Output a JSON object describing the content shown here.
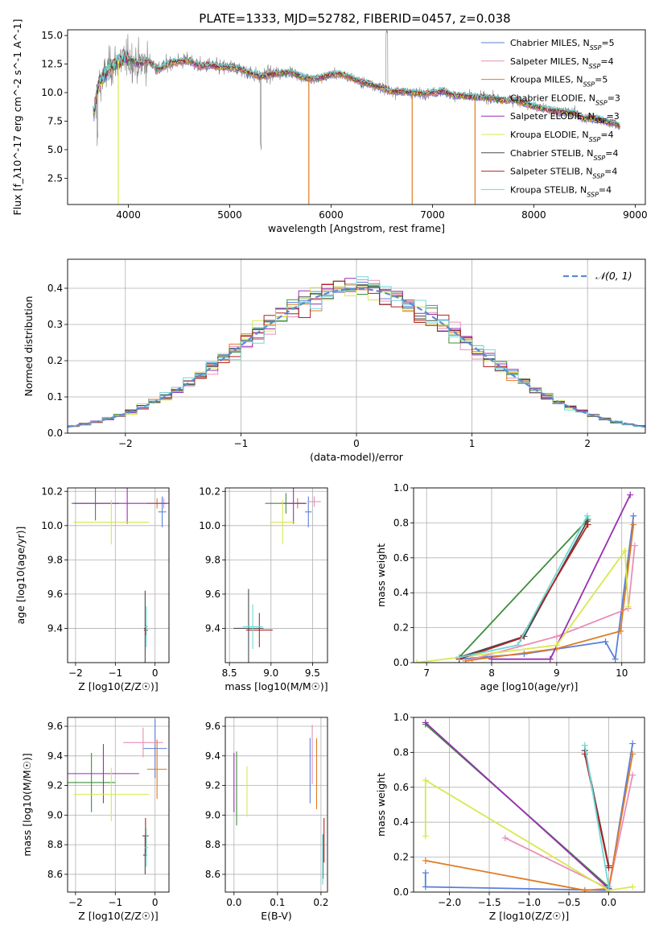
{
  "figure": {
    "title": "PLATE=1333, MJD=52782, FIBERID=0457, z=0.038"
  },
  "chart_data": [
    {
      "id": "spectrum",
      "type": "line",
      "title": "PLATE=1333, MJD=52782, FIBERID=0457, z=0.038",
      "xlabel": "wavelength [Angstrom, rest frame]",
      "ylabel": "Flux [f_λ10^-17 erg cm^-2 s^-1 A^-1]",
      "xlim": [
        3400,
        9100
      ],
      "ylim": [
        0.2,
        15.5
      ],
      "xticks": [
        "4000",
        "5000",
        "6000",
        "7000",
        "8000",
        "9000"
      ],
      "yticks": [
        "2.5",
        "5.0",
        "7.5",
        "10.0",
        "12.5",
        "15.0"
      ],
      "grid": false,
      "legend_position": "top-right",
      "data_color": "#808080",
      "continuum": {
        "x": [
          3650,
          3700,
          3800,
          3900,
          4000,
          4100,
          4200,
          4300,
          4400,
          4500,
          4600,
          4700,
          4800,
          4900,
          5000,
          5100,
          5200,
          5300,
          5400,
          5500,
          5600,
          5700,
          5800,
          5900,
          6000,
          6100,
          6200,
          6300,
          6400,
          6500,
          6600,
          6700,
          6800,
          6900,
          7000,
          7100,
          7200,
          7300,
          7400,
          7500,
          7600,
          7700,
          7800,
          7900,
          8000,
          8100,
          8200,
          8300,
          8400,
          8500,
          8600,
          8700,
          8800,
          8850
        ],
        "y": [
          7.7,
          10.5,
          12.0,
          12.8,
          13.0,
          12.5,
          12.8,
          12.0,
          12.6,
          12.7,
          12.8,
          12.3,
          12.4,
          12.2,
          12.2,
          12.1,
          11.7,
          11.4,
          11.6,
          11.7,
          11.8,
          11.4,
          11.2,
          11.3,
          11.6,
          11.6,
          11.3,
          10.9,
          10.7,
          10.4,
          10.1,
          10.1,
          10.0,
          9.9,
          10.0,
          10.1,
          9.8,
          9.7,
          9.6,
          9.6,
          9.5,
          9.3,
          9.4,
          9.1,
          8.8,
          8.6,
          8.4,
          8.3,
          8.2,
          7.7,
          7.8,
          7.5,
          7.3,
          7.0
        ]
      },
      "series": [
        {
          "name": "Chabrier MILES, N_SSP=5",
          "color": "#5b7fd9"
        },
        {
          "name": "Salpeter MILES, N_SSP=4",
          "color": "#e88fb8"
        },
        {
          "name": "Kroupa MILES, N_SSP=5",
          "color": "#e07b25"
        },
        {
          "name": "Chabrier ELODIE, N_SSP=3",
          "color": "#3e8e3e"
        },
        {
          "name": "Salpeter ELODIE, N_SSP=3",
          "color": "#9a2fb3"
        },
        {
          "name": "Kroupa ELODIE, N_SSP=4",
          "color": "#d9e84f"
        },
        {
          "name": "Chabrier STELIB, N_SSP=4",
          "color": "#4a4a4a"
        },
        {
          "name": "Salpeter STELIB, N_SSP=4",
          "color": "#b22222"
        },
        {
          "name": "Kroupa STELIB, N_SSP=4",
          "color": "#6fd8d8"
        }
      ]
    },
    {
      "id": "residuals",
      "type": "step",
      "xlabel": "(data-model)/error",
      "ylabel": "Normed distribution",
      "xlim": [
        -2.5,
        2.5
      ],
      "ylim": [
        0,
        0.48
      ],
      "xticks": [
        "−2",
        "−1",
        "0",
        "1",
        "2"
      ],
      "yticks": [
        "0.0",
        "0.1",
        "0.2",
        "0.3",
        "0.4"
      ],
      "grid": true,
      "legend_position": "top-right",
      "reference": {
        "name": "𝒩(0, 1)",
        "color": "#5b8ad6"
      },
      "bin_edges": [
        -2.5,
        2.5
      ],
      "bin_count": 50
    },
    {
      "id": "age-vs-Z",
      "type": "errorbar",
      "xlabel": "Z [log10(Z/Z☉)]",
      "ylabel": "age  [log10(age/yr)]",
      "xlim": [
        -2.2,
        0.35
      ],
      "ylim": [
        9.2,
        10.22
      ],
      "xticks": [
        "−2",
        "−1",
        "0"
      ],
      "yticks": [
        "9.4",
        "9.6",
        "9.8",
        "10.0",
        "10.2"
      ],
      "grid": true,
      "points": [
        {
          "series": "Chabrier MILES",
          "x": 0.18,
          "y": 10.08,
          "xerr": 0.1,
          "yerr": 0.09
        },
        {
          "series": "Salpeter MILES",
          "x": 0.22,
          "y": 10.13,
          "xerr": 0.1,
          "yerr": 0.03
        },
        {
          "series": "Kroupa MILES",
          "x": 0.05,
          "y": 10.13,
          "xerr": 0.25,
          "yerr": 0.03
        },
        {
          "series": "Chabrier ELODIE",
          "x": -1.5,
          "y": 10.13,
          "xerr": 0.6,
          "yerr": 0.1
        },
        {
          "series": "Salpeter ELODIE",
          "x": -0.7,
          "y": 10.13,
          "xerr": 1.35,
          "yerr": 0.12
        },
        {
          "series": "Kroupa ELODIE",
          "x": -1.1,
          "y": 10.02,
          "xerr": 0.95,
          "yerr": 0.13
        },
        {
          "series": "Chabrier STELIB",
          "x": -0.25,
          "y": 9.4,
          "xerr": 0.03,
          "yerr": 0.22
        },
        {
          "series": "Salpeter STELIB",
          "x": -0.23,
          "y": 9.39,
          "xerr": 0.05,
          "yerr": 0.03
        },
        {
          "series": "Kroupa STELIB",
          "x": -0.22,
          "y": 9.41,
          "xerr": 0.04,
          "yerr": 0.12
        }
      ]
    },
    {
      "id": "age-vs-mass",
      "type": "errorbar",
      "xlabel": "mass [log10(M/M☉)]",
      "ylabel": "",
      "xlim": [
        8.45,
        9.68
      ],
      "ylim": [
        9.2,
        10.22
      ],
      "xticks": [
        "8.5",
        "9.0",
        "9.5"
      ],
      "yticks": [
        "9.4",
        "9.6",
        "9.8",
        "10.0",
        "10.2"
      ],
      "grid": true,
      "points": [
        {
          "series": "Chabrier MILES",
          "x": 9.45,
          "y": 10.08,
          "xerr": 0.04,
          "yerr": 0.09
        },
        {
          "series": "Salpeter MILES",
          "x": 9.52,
          "y": 10.14,
          "xerr": 0.08,
          "yerr": 0.03
        },
        {
          "series": "Kroupa MILES",
          "x": 9.32,
          "y": 10.13,
          "xerr": 0.1,
          "yerr": 0.03
        },
        {
          "series": "Chabrier ELODIE",
          "x": 9.18,
          "y": 10.13,
          "xerr": 0.25,
          "yerr": 0.06
        },
        {
          "series": "Salpeter ELODIE",
          "x": 9.27,
          "y": 10.13,
          "xerr": 0.14,
          "yerr": 0.12
        },
        {
          "series": "Kroupa ELODIE",
          "x": 9.14,
          "y": 10.02,
          "xerr": 0.15,
          "yerr": 0.13
        },
        {
          "series": "Chabrier STELIB",
          "x": 8.73,
          "y": 9.4,
          "xerr": 0.18,
          "yerr": 0.23
        },
        {
          "series": "Salpeter STELIB",
          "x": 8.86,
          "y": 9.39,
          "xerr": 0.16,
          "yerr": 0.1
        },
        {
          "series": "Kroupa STELIB",
          "x": 8.78,
          "y": 9.41,
          "xerr": 0.12,
          "yerr": 0.13
        }
      ]
    },
    {
      "id": "mass-weight-vs-age",
      "type": "line",
      "xlabel": "age  [log10(age/yr)]",
      "ylabel": "mass weight",
      "xlim": [
        6.8,
        10.35
      ],
      "ylim": [
        0,
        1.0
      ],
      "xticks": [
        "7",
        "8",
        "9",
        "10"
      ],
      "yticks": [
        "0.0",
        "0.2",
        "0.4",
        "0.6",
        "0.8",
        "1.0"
      ],
      "grid": true,
      "series": [
        {
          "name": "Chabrier MILES",
          "x": [
            7.5,
            8.5,
            9.75,
            9.9,
            10.18
          ],
          "y": [
            0.02,
            0.05,
            0.12,
            0.02,
            0.84
          ]
        },
        {
          "name": "Salpeter MILES",
          "x": [
            7.7,
            9.0,
            10.1,
            10.2
          ],
          "y": [
            0.02,
            0.15,
            0.31,
            0.67
          ]
        },
        {
          "name": "Kroupa MILES",
          "x": [
            7.6,
            9.0,
            9.98,
            10.18
          ],
          "y": [
            0.01,
            0.08,
            0.18,
            0.79
          ]
        },
        {
          "name": "Chabrier ELODIE",
          "x": [
            7.5,
            9.48
          ],
          "y": [
            0.03,
            0.82
          ]
        },
        {
          "name": "Salpeter ELODIE",
          "x": [
            8.0,
            8.9,
            10.13
          ],
          "y": [
            0.02,
            0.02,
            0.96
          ]
        },
        {
          "name": "Kroupa ELODIE",
          "x": [
            6.85,
            9.0,
            10.05,
            10.1
          ],
          "y": [
            0.0,
            0.1,
            0.64,
            0.32
          ]
        },
        {
          "name": "Chabrier STELIB",
          "x": [
            7.5,
            8.5,
            9.47
          ],
          "y": [
            0.03,
            0.15,
            0.81
          ]
        },
        {
          "name": "Salpeter STELIB",
          "x": [
            7.5,
            8.45,
            9.48
          ],
          "y": [
            0.02,
            0.14,
            0.79
          ]
        },
        {
          "name": "Kroupa STELIB",
          "x": [
            7.5,
            8.4,
            9.47
          ],
          "y": [
            0.03,
            0.1,
            0.84
          ]
        }
      ]
    },
    {
      "id": "mass-vs-Z",
      "type": "errorbar",
      "xlabel": "Z [log10(Z/Z☉)]",
      "ylabel": "mass [log10(M/M☉)]",
      "xlim": [
        -2.2,
        0.35
      ],
      "ylim": [
        8.48,
        9.66
      ],
      "xticks": [
        "−2",
        "−1",
        "0"
      ],
      "yticks": [
        "8.6",
        "8.8",
        "9.0",
        "9.2",
        "9.4",
        "9.6"
      ],
      "grid": true,
      "points": [
        {
          "series": "Chabrier MILES",
          "x": 0.0,
          "y": 9.45,
          "xerr": 0.3,
          "yerr": 0.2
        },
        {
          "series": "Salpeter MILES",
          "x": -0.3,
          "y": 9.49,
          "xerr": 0.5,
          "yerr": 0.1
        },
        {
          "series": "Kroupa MILES",
          "x": 0.05,
          "y": 9.31,
          "xerr": 0.25,
          "yerr": 0.2
        },
        {
          "series": "Chabrier ELODIE",
          "x": -1.6,
          "y": 9.22,
          "xerr": 0.6,
          "yerr": 0.2
        },
        {
          "series": "Salpeter ELODIE",
          "x": -1.3,
          "y": 9.28,
          "xerr": 0.9,
          "yerr": 0.2
        },
        {
          "series": "Kroupa ELODIE",
          "x": -1.1,
          "y": 9.14,
          "xerr": 0.95,
          "yerr": 0.18
        },
        {
          "series": "Chabrier STELIB",
          "x": -0.25,
          "y": 8.73,
          "xerr": 0.05,
          "yerr": 0.13
        },
        {
          "series": "Salpeter STELIB",
          "x": -0.24,
          "y": 8.86,
          "xerr": 0.08,
          "yerr": 0.12
        },
        {
          "series": "Kroupa STELIB",
          "x": -0.22,
          "y": 8.78,
          "xerr": 0.05,
          "yerr": 0.13
        }
      ]
    },
    {
      "id": "mass-vs-EBV",
      "type": "errorbar",
      "xlabel": "E(B-V)",
      "ylabel": "",
      "xlim": [
        -0.02,
        0.215
      ],
      "ylim": [
        8.48,
        9.66
      ],
      "xticks": [
        "0.0",
        "0.1",
        "0.2"
      ],
      "yticks": [
        "8.6",
        "8.8",
        "9.0",
        "9.2",
        "9.4",
        "9.6"
      ],
      "grid": true,
      "points": [
        {
          "series": "Chabrier MILES",
          "x": 0.175,
          "y": 9.3,
          "xerr": 0.0,
          "yerr": 0.22
        },
        {
          "series": "Salpeter MILES",
          "x": 0.18,
          "y": 9.41,
          "xerr": 0.0,
          "yerr": 0.2
        },
        {
          "series": "Kroupa MILES",
          "x": 0.19,
          "y": 9.28,
          "xerr": 0.0,
          "yerr": 0.24
        },
        {
          "series": "Chabrier ELODIE",
          "x": 0.006,
          "y": 9.18,
          "xerr": 0.0,
          "yerr": 0.25
        },
        {
          "series": "Salpeter ELODIE",
          "x": 0.0,
          "y": 9.22,
          "xerr": 0.0,
          "yerr": 0.2
        },
        {
          "series": "Kroupa ELODIE",
          "x": 0.03,
          "y": 9.16,
          "xerr": 0.0,
          "yerr": 0.17
        },
        {
          "series": "Chabrier STELIB",
          "x": 0.205,
          "y": 8.72,
          "xerr": 0.0,
          "yerr": 0.15
        },
        {
          "series": "Salpeter STELIB",
          "x": 0.207,
          "y": 8.83,
          "xerr": 0.0,
          "yerr": 0.15
        },
        {
          "series": "Kroupa STELIB",
          "x": 0.204,
          "y": 8.7,
          "xerr": 0.0,
          "yerr": 0.17
        }
      ]
    },
    {
      "id": "mass-weight-vs-Z",
      "type": "line",
      "xlabel": "Z [log10(Z/Z☉)]",
      "ylabel": "mass weight",
      "xlim": [
        -2.45,
        0.45
      ],
      "ylim": [
        0,
        1.0
      ],
      "xticks": [
        "−2.0",
        "−1.5",
        "−1.0",
        "−0.5",
        "0.0"
      ],
      "yticks": [
        "0.0",
        "0.2",
        "0.4",
        "0.6",
        "0.8",
        "1.0"
      ],
      "grid": true,
      "series": [
        {
          "name": "Chabrier MILES",
          "x": [
            -2.3,
            -2.3,
            0.0,
            0.3
          ],
          "y": [
            0.11,
            0.03,
            0.01,
            0.85
          ]
        },
        {
          "name": "Salpeter MILES",
          "x": [
            -1.3,
            0.0,
            0.3
          ],
          "y": [
            0.31,
            0.02,
            0.67
          ]
        },
        {
          "name": "Kroupa MILES",
          "x": [
            -2.3,
            -0.3,
            0.0,
            0.3
          ],
          "y": [
            0.18,
            0.01,
            0.02,
            0.79
          ]
        },
        {
          "name": "Chabrier ELODIE",
          "x": [
            -2.3,
            0.0
          ],
          "y": [
            0.96,
            0.03
          ]
        },
        {
          "name": "Salpeter ELODIE",
          "x": [
            -2.3,
            0.0
          ],
          "y": [
            0.97,
            0.02
          ]
        },
        {
          "name": "Kroupa ELODIE",
          "x": [
            -2.3,
            -2.3,
            0.0,
            0.3
          ],
          "y": [
            0.32,
            0.64,
            0.01,
            0.03
          ]
        },
        {
          "name": "Chabrier STELIB",
          "x": [
            -0.3,
            0.0
          ],
          "y": [
            0.81,
            0.15
          ]
        },
        {
          "name": "Salpeter STELIB",
          "x": [
            -0.3,
            0.0
          ],
          "y": [
            0.79,
            0.14
          ]
        },
        {
          "name": "Kroupa STELIB",
          "x": [
            -0.3,
            0.0
          ],
          "y": [
            0.84,
            0.03
          ]
        }
      ]
    }
  ]
}
